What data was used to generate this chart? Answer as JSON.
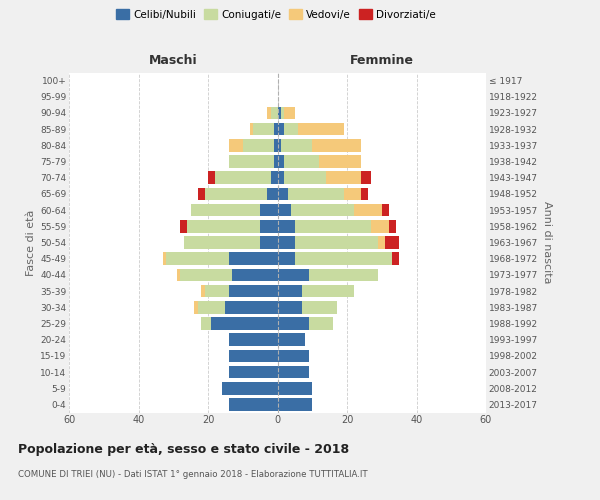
{
  "age_groups": [
    "0-4",
    "5-9",
    "10-14",
    "15-19",
    "20-24",
    "25-29",
    "30-34",
    "35-39",
    "40-44",
    "45-49",
    "50-54",
    "55-59",
    "60-64",
    "65-69",
    "70-74",
    "75-79",
    "80-84",
    "85-89",
    "90-94",
    "95-99",
    "100+"
  ],
  "birth_years": [
    "2013-2017",
    "2008-2012",
    "2003-2007",
    "1998-2002",
    "1993-1997",
    "1988-1992",
    "1983-1987",
    "1978-1982",
    "1973-1977",
    "1968-1972",
    "1963-1967",
    "1958-1962",
    "1953-1957",
    "1948-1952",
    "1943-1947",
    "1938-1942",
    "1933-1937",
    "1928-1932",
    "1923-1927",
    "1918-1922",
    "≤ 1917"
  ],
  "maschi": {
    "celibi": [
      14,
      16,
      14,
      14,
      14,
      19,
      15,
      14,
      13,
      14,
      5,
      5,
      5,
      3,
      2,
      1,
      1,
      1,
      0,
      0,
      0
    ],
    "coniugati": [
      0,
      0,
      0,
      0,
      0,
      3,
      8,
      7,
      15,
      18,
      22,
      21,
      20,
      18,
      16,
      13,
      9,
      6,
      2,
      0,
      0
    ],
    "vedovi": [
      0,
      0,
      0,
      0,
      0,
      0,
      1,
      1,
      1,
      1,
      0,
      0,
      0,
      0,
      0,
      0,
      4,
      1,
      1,
      0,
      0
    ],
    "divorziati": [
      0,
      0,
      0,
      0,
      0,
      0,
      0,
      0,
      0,
      0,
      0,
      2,
      0,
      2,
      2,
      0,
      0,
      0,
      0,
      0,
      0
    ]
  },
  "femmine": {
    "nubili": [
      10,
      10,
      9,
      9,
      8,
      9,
      7,
      7,
      9,
      5,
      5,
      5,
      4,
      3,
      2,
      2,
      1,
      2,
      1,
      0,
      0
    ],
    "coniugate": [
      0,
      0,
      0,
      0,
      0,
      7,
      10,
      15,
      20,
      28,
      24,
      22,
      18,
      16,
      12,
      10,
      9,
      4,
      1,
      0,
      0
    ],
    "vedove": [
      0,
      0,
      0,
      0,
      0,
      0,
      0,
      0,
      0,
      0,
      2,
      5,
      8,
      5,
      10,
      12,
      14,
      13,
      3,
      0,
      0
    ],
    "divorziate": [
      0,
      0,
      0,
      0,
      0,
      0,
      0,
      0,
      0,
      2,
      4,
      2,
      2,
      2,
      3,
      0,
      0,
      0,
      0,
      0,
      0
    ]
  },
  "colors": {
    "celibi": "#3a6ea5",
    "coniugati": "#c8dba0",
    "vedovi": "#f5c97a",
    "divorziati": "#cc2222"
  },
  "xlim": 60,
  "title": "Popolazione per età, sesso e stato civile - 2018",
  "subtitle": "COMUNE DI TRIEI (NU) - Dati ISTAT 1° gennaio 2018 - Elaborazione TUTTITALIA.IT",
  "ylabel_left": "Fasce di età",
  "ylabel_right": "Anni di nascita",
  "label_maschi": "Maschi",
  "label_femmine": "Femmine",
  "bg_color": "#f0f0f0",
  "plot_bg_color": "#ffffff",
  "grid_color": "#cccccc"
}
